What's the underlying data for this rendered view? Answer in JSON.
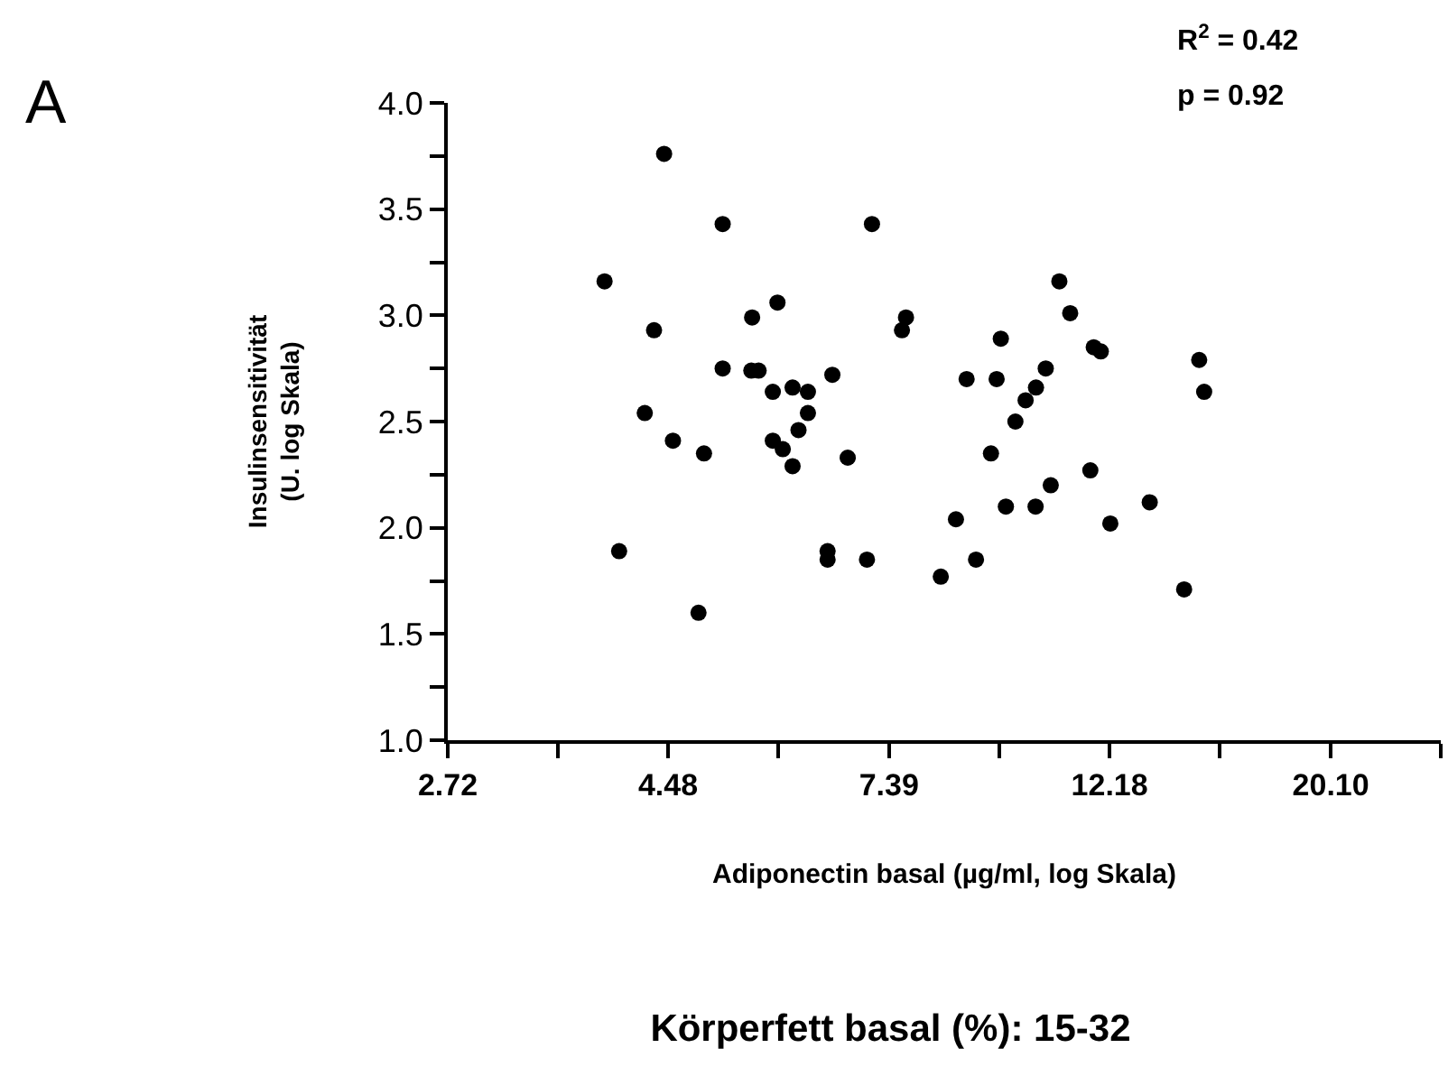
{
  "chart_data": {
    "type": "scatter",
    "title": "Körperfett basal (%): 15-32",
    "xlabel": "Adiponectin basal (µg/ml, log Skala)",
    "ylabel": "Insulinsensitivität\n(U. log Skala)",
    "annotations": [
      "A",
      "R$^{2}$ = 0.42",
      "p = 0.92"
    ],
    "log": "x",
    "marker": "circle",
    "xlim": [
      2.72,
      25.79
    ],
    "xticks": [
      2.72,
      {
        "value": 3.49,
        "label": null
      },
      4.48,
      {
        "value": 5.75,
        "label": null
      },
      7.39,
      {
        "value": 9.49,
        "label": null
      },
      12.18,
      {
        "value": 15.64,
        "label": null
      },
      {
        "value": 20.1,
        "label": "20.10"
      },
      {
        "value": 25.79,
        "label": null
      }
    ],
    "ylim": [
      1.0,
      4.0
    ],
    "yticks": [
      {
        "value": 1.0,
        "label": "1.0"
      },
      {
        "value": 1.25,
        "label": null
      },
      1.5,
      {
        "value": 1.75,
        "label": null
      },
      {
        "value": 2.0,
        "label": "2.0"
      },
      {
        "value": 2.25,
        "label": null
      },
      2.5,
      {
        "value": 2.75,
        "label": null
      },
      {
        "value": 3.0,
        "label": "3.0"
      },
      {
        "value": 3.25,
        "label": null
      },
      3.5,
      {
        "value": 3.75,
        "label": null
      },
      {
        "value": 4.0,
        "label": "4.0"
      }
    ],
    "series": [
      {
        "color": "#000000",
        "x": [
          4.44,
          5.07,
          7.11,
          3.88,
          5.74,
          5.42,
          4.34,
          7.68,
          7.61,
          5.07,
          5.41,
          5.5,
          6.5,
          5.68,
          5.94,
          6.15,
          6.15,
          4.25,
          6.02,
          4.53,
          5.68,
          5.81,
          4.86,
          5.94,
          6.73,
          4.01,
          6.43,
          6.43,
          7.03,
          4.8,
          10.87,
          11.14,
          9.52,
          11.75,
          11.94,
          14.92,
          15.09,
          8.81,
          9.43,
          10.54,
          10.31,
          10.07,
          9.84,
          9.31,
          11.66,
          10.66,
          9.63,
          10.3,
          8.6,
          13.34,
          12.2,
          9.0,
          8.31,
          14.42
        ],
        "values": [
          3.76,
          3.43,
          3.43,
          3.16,
          3.06,
          2.99,
          2.93,
          2.99,
          2.93,
          2.75,
          2.74,
          2.74,
          2.72,
          2.64,
          2.66,
          2.64,
          2.54,
          2.54,
          2.46,
          2.41,
          2.41,
          2.37,
          2.35,
          2.29,
          2.33,
          1.89,
          1.89,
          1.85,
          1.85,
          1.6,
          3.16,
          3.01,
          2.89,
          2.85,
          2.83,
          2.79,
          2.64,
          2.7,
          2.7,
          2.75,
          2.66,
          2.6,
          2.5,
          2.35,
          2.27,
          2.2,
          2.1,
          2.1,
          2.04,
          2.12,
          2.02,
          1.85,
          1.77,
          1.71
        ]
      }
    ]
  }
}
